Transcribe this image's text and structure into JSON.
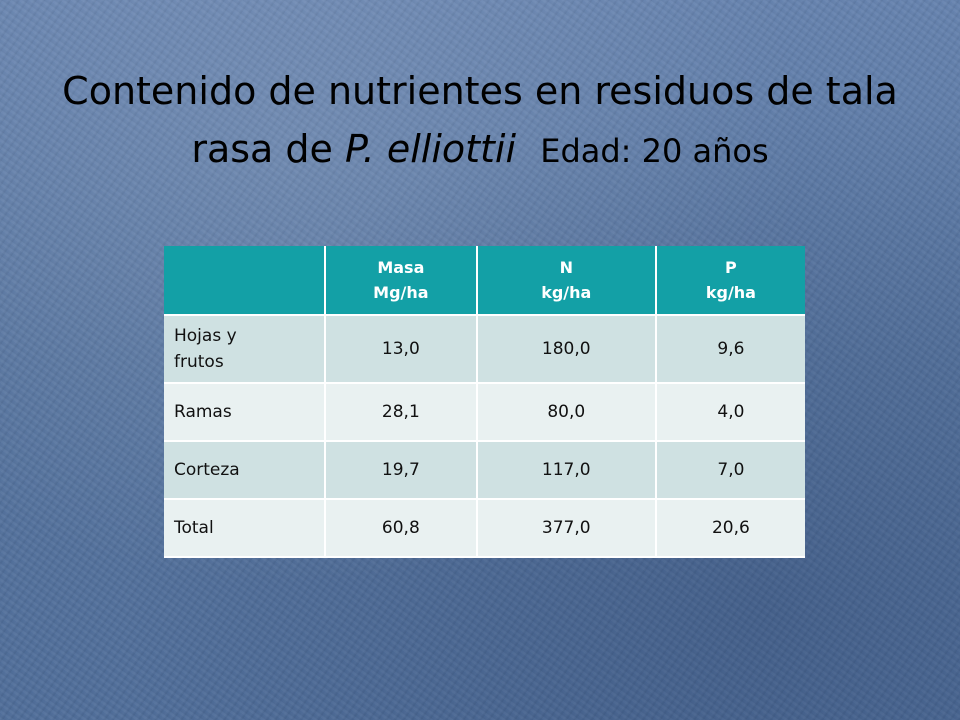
{
  "title": {
    "line1": "Contenido de nutrientes en residuos de tala",
    "line2_prefix": "rasa de ",
    "species": "P. elliottii",
    "age": "Edad: 20 años"
  },
  "table": {
    "headers": [
      "",
      "Masa\nMg/ha",
      "N\nkg/ha",
      "P\nkg/ha"
    ],
    "rows": [
      {
        "label": "Hojas y\nfrutos",
        "masa": "13,0",
        "n": "180,0",
        "p": "9,6"
      },
      {
        "label": "Ramas",
        "masa": "28,1",
        "n": "80,0",
        "p": "4,0"
      },
      {
        "label": "Corteza",
        "masa": "19,7",
        "n": "117,0",
        "p": "7,0"
      },
      {
        "label": "Total",
        "masa": "60,8",
        "n": "377,0",
        "p": "20,6"
      }
    ]
  },
  "colors": {
    "background": "#5a78a6",
    "header_bg": "#13a0a6",
    "row_dark": "#cfe1e2",
    "row_light": "#e9f1f1"
  }
}
